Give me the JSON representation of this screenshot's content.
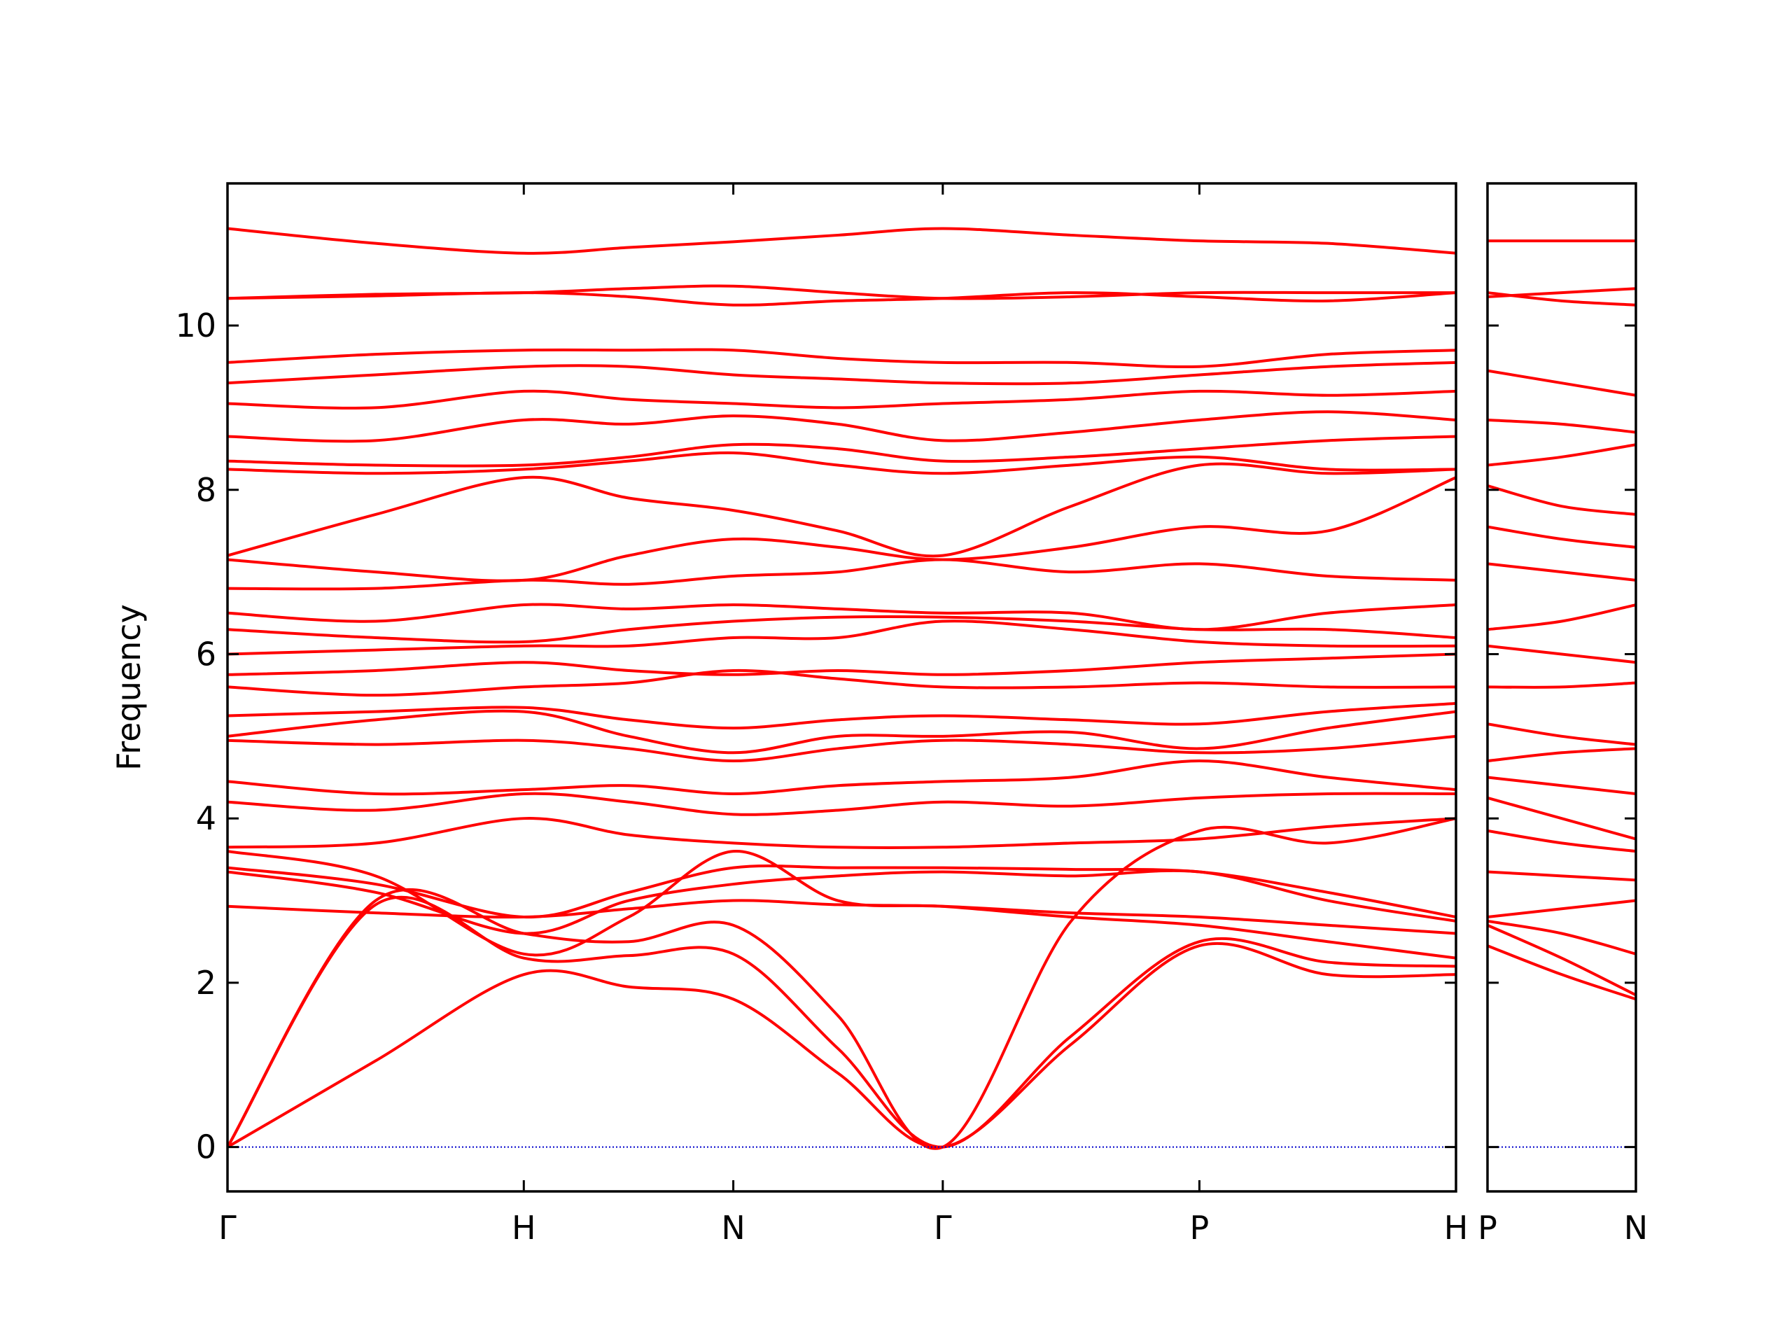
{
  "chart_data": [
    {
      "type": "line",
      "ylabel": "Frequency",
      "color": "#ff0000",
      "x": [
        0,
        0.5,
        1,
        1.354,
        1.707,
        2.06,
        2.414,
        2.847,
        3.28,
        3.713,
        4.146
      ],
      "xlim": [
        0,
        4.146
      ],
      "xticks": [
        {
          "value": 0,
          "label": "Γ"
        },
        {
          "value": 1,
          "label": "H"
        },
        {
          "value": 1.707,
          "label": "N"
        },
        {
          "value": 2.414,
          "label": "Γ"
        },
        {
          "value": 3.28,
          "label": "P"
        },
        {
          "value": 4.146,
          "label": "H"
        }
      ],
      "ylim": [
        -0.54,
        11.73
      ],
      "yticks": [
        0,
        2,
        4,
        6,
        8,
        10
      ],
      "series": [
        {
          "values": [
            0,
            1.05,
            2.1,
            1.95,
            1.8,
            0.9,
            0,
            1.25,
            2.45,
            2.1,
            2.1
          ]
        },
        {
          "values": [
            0,
            2.95,
            2.3,
            2.33,
            2.35,
            1.2,
            0,
            1.35,
            2.5,
            2.25,
            2.2
          ]
        },
        {
          "values": [
            0,
            3.0,
            2.6,
            2.5,
            2.7,
            1.6,
            0,
            2.75,
            3.85,
            3.7,
            4.0
          ]
        },
        {
          "values": [
            2.93,
            2.85,
            2.8,
            2.9,
            3.0,
            2.95,
            2.93,
            2.85,
            2.8,
            2.7,
            2.6
          ]
        },
        {
          "values": [
            3.35,
            3.1,
            2.6,
            3.0,
            3.2,
            3.3,
            3.35,
            3.3,
            3.35,
            3.0,
            2.75
          ]
        },
        {
          "values": [
            3.4,
            3.2,
            2.8,
            3.1,
            3.4,
            3.4,
            3.4,
            3.38,
            3.35,
            3.1,
            2.8
          ]
        },
        {
          "values": [
            3.6,
            3.3,
            2.35,
            2.8,
            3.6,
            3.0,
            2.93,
            2.8,
            2.7,
            2.5,
            2.3
          ]
        },
        {
          "values": [
            3.65,
            3.7,
            4.0,
            3.8,
            3.7,
            3.65,
            3.65,
            3.7,
            3.75,
            3.9,
            4.0
          ]
        },
        {
          "values": [
            4.2,
            4.1,
            4.3,
            4.2,
            4.05,
            4.1,
            4.2,
            4.15,
            4.25,
            4.3,
            4.3
          ]
        },
        {
          "values": [
            4.45,
            4.3,
            4.35,
            4.4,
            4.3,
            4.4,
            4.45,
            4.5,
            4.7,
            4.5,
            4.35
          ]
        },
        {
          "values": [
            4.95,
            4.9,
            4.95,
            4.85,
            4.7,
            4.85,
            4.95,
            4.9,
            4.8,
            4.85,
            5.0
          ]
        },
        {
          "values": [
            5.0,
            5.2,
            5.3,
            5.0,
            4.8,
            5.0,
            5.0,
            5.05,
            4.85,
            5.1,
            5.3
          ]
        },
        {
          "values": [
            5.25,
            5.3,
            5.35,
            5.2,
            5.1,
            5.2,
            5.25,
            5.2,
            5.15,
            5.3,
            5.4
          ]
        },
        {
          "values": [
            5.6,
            5.5,
            5.6,
            5.65,
            5.8,
            5.7,
            5.6,
            5.6,
            5.65,
            5.6,
            5.6
          ]
        },
        {
          "values": [
            5.75,
            5.8,
            5.9,
            5.8,
            5.75,
            5.8,
            5.75,
            5.8,
            5.9,
            5.95,
            6.0
          ]
        },
        {
          "values": [
            6.0,
            6.05,
            6.1,
            6.1,
            6.2,
            6.2,
            6.4,
            6.3,
            6.15,
            6.1,
            6.1
          ]
        },
        {
          "values": [
            6.3,
            6.2,
            6.15,
            6.3,
            6.4,
            6.45,
            6.45,
            6.4,
            6.3,
            6.3,
            6.2
          ]
        },
        {
          "values": [
            6.5,
            6.4,
            6.6,
            6.55,
            6.6,
            6.55,
            6.5,
            6.5,
            6.3,
            6.5,
            6.6
          ]
        },
        {
          "values": [
            6.8,
            6.8,
            6.9,
            6.85,
            6.95,
            7.0,
            7.15,
            7.0,
            7.1,
            6.95,
            6.9
          ]
        },
        {
          "values": [
            7.15,
            7.0,
            6.9,
            7.2,
            7.4,
            7.3,
            7.15,
            7.3,
            7.55,
            7.5,
            8.15
          ]
        },
        {
          "values": [
            7.2,
            7.7,
            8.15,
            7.9,
            7.75,
            7.5,
            7.2,
            7.8,
            8.3,
            8.2,
            8.25
          ]
        },
        {
          "values": [
            8.25,
            8.2,
            8.25,
            8.35,
            8.45,
            8.3,
            8.2,
            8.3,
            8.4,
            8.25,
            8.25
          ]
        },
        {
          "values": [
            8.35,
            8.3,
            8.3,
            8.4,
            8.55,
            8.5,
            8.35,
            8.4,
            8.5,
            8.6,
            8.65
          ]
        },
        {
          "values": [
            8.65,
            8.6,
            8.85,
            8.8,
            8.9,
            8.8,
            8.6,
            8.7,
            8.85,
            8.95,
            8.85
          ]
        },
        {
          "values": [
            9.05,
            9.0,
            9.2,
            9.1,
            9.05,
            9.0,
            9.05,
            9.1,
            9.2,
            9.15,
            9.2
          ]
        },
        {
          "values": [
            9.3,
            9.4,
            9.5,
            9.5,
            9.4,
            9.35,
            9.3,
            9.3,
            9.4,
            9.5,
            9.55
          ]
        },
        {
          "values": [
            9.55,
            9.65,
            9.7,
            9.7,
            9.7,
            9.6,
            9.55,
            9.55,
            9.5,
            9.65,
            9.7
          ]
        },
        {
          "values": [
            10.33,
            10.36,
            10.4,
            10.35,
            10.25,
            10.3,
            10.33,
            10.4,
            10.35,
            10.3,
            10.4
          ]
        },
        {
          "values": [
            10.33,
            10.38,
            10.4,
            10.45,
            10.48,
            10.4,
            10.33,
            10.35,
            10.4,
            10.4,
            10.4
          ]
        },
        {
          "values": [
            11.18,
            11.0,
            10.88,
            10.95,
            11.02,
            11.1,
            11.18,
            11.1,
            11.03,
            11.0,
            10.88
          ]
        }
      ]
    },
    {
      "type": "line",
      "color": "#ff0000",
      "x": [
        4.146,
        4.396,
        4.646
      ],
      "xlim": [
        4.146,
        4.646
      ],
      "xticks": [
        {
          "value": 4.146,
          "label": "P"
        },
        {
          "value": 4.646,
          "label": "N"
        }
      ],
      "ylim": [
        -0.54,
        11.73
      ],
      "yticks": [
        0,
        2,
        4,
        6,
        8,
        10
      ],
      "series": [
        {
          "values": [
            2.45,
            2.1,
            1.8
          ]
        },
        {
          "values": [
            2.7,
            2.3,
            1.85
          ]
        },
        {
          "values": [
            2.75,
            2.6,
            2.35
          ]
        },
        {
          "values": [
            2.8,
            2.9,
            3.0
          ]
        },
        {
          "values": [
            3.35,
            3.3,
            3.25
          ]
        },
        {
          "values": [
            3.85,
            3.7,
            3.6
          ]
        },
        {
          "values": [
            4.25,
            4.0,
            3.75
          ]
        },
        {
          "values": [
            4.5,
            4.4,
            4.3
          ]
        },
        {
          "values": [
            4.7,
            4.8,
            4.85
          ]
        },
        {
          "values": [
            5.15,
            5.0,
            4.9
          ]
        },
        {
          "values": [
            5.6,
            5.6,
            5.65
          ]
        },
        {
          "values": [
            6.1,
            6.0,
            5.9
          ]
        },
        {
          "values": [
            6.3,
            6.4,
            6.6
          ]
        },
        {
          "values": [
            7.1,
            7.0,
            6.9
          ]
        },
        {
          "values": [
            7.55,
            7.4,
            7.3
          ]
        },
        {
          "values": [
            8.05,
            7.8,
            7.7
          ]
        },
        {
          "values": [
            8.3,
            8.4,
            8.55
          ]
        },
        {
          "values": [
            8.85,
            8.8,
            8.7
          ]
        },
        {
          "values": [
            9.45,
            9.3,
            9.15
          ]
        },
        {
          "values": [
            10.35,
            10.4,
            10.45
          ]
        },
        {
          "values": [
            10.4,
            10.3,
            10.25
          ]
        },
        {
          "values": [
            11.03,
            11.03,
            11.03
          ]
        }
      ]
    }
  ]
}
